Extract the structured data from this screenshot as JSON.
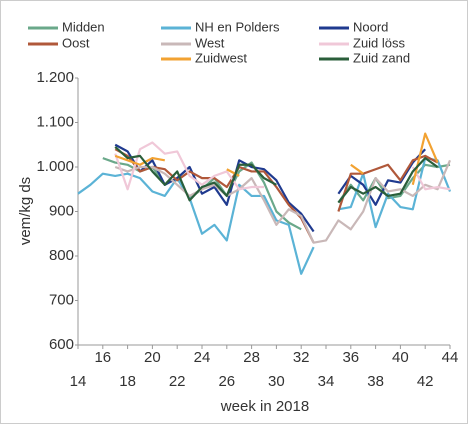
{
  "chart_data": {
    "type": "line",
    "y_label": "vem/kg ds",
    "x_label": "week in 2018",
    "x": [
      14,
      15,
      16,
      17,
      18,
      19,
      20,
      21,
      22,
      23,
      24,
      25,
      26,
      27,
      28,
      29,
      30,
      31,
      32,
      33,
      34,
      35,
      36,
      37,
      38,
      39,
      40,
      41,
      42,
      43,
      44
    ],
    "xlim": [
      14,
      44
    ],
    "xticks": [
      14,
      16,
      18,
      20,
      22,
      24,
      26,
      28,
      30,
      32,
      34,
      36,
      38,
      40,
      42,
      44
    ],
    "ylim": [
      600,
      1200
    ],
    "yticks": [
      600,
      700,
      800,
      900,
      {
        "value": 1000,
        "label": "1.000"
      },
      {
        "value": 1100,
        "label": "1.100"
      },
      {
        "value": 1200,
        "label": "1.200"
      }
    ],
    "series": [
      {
        "name": "Midden",
        "color": "#6aa88a",
        "values": [
          null,
          null,
          1020,
          1010,
          1005,
          990,
          1000,
          960,
          975,
          930,
          950,
          975,
          935,
          990,
          1010,
          965,
          900,
          875,
          860,
          null,
          null,
          920,
          960,
          925,
          975,
          930,
          935,
          975,
          1005,
          1000,
          1005
        ]
      },
      {
        "name": "NH en Polders",
        "color": "#5bb3d6",
        "values": [
          940,
          960,
          985,
          980,
          985,
          975,
          945,
          935,
          975,
          930,
          850,
          870,
          835,
          960,
          935,
          935,
          880,
          870,
          760,
          820,
          null,
          905,
          910,
          985,
          865,
          940,
          910,
          905,
          1020,
          1015,
          945
        ]
      },
      {
        "name": "Noord",
        "color": "#1f3a8f",
        "values": [
          null,
          null,
          null,
          1050,
          1035,
          990,
          1015,
          960,
          975,
          1000,
          940,
          955,
          915,
          1015,
          1000,
          995,
          970,
          920,
          895,
          855,
          null,
          940,
          980,
          960,
          915,
          970,
          965,
          1010,
          1040,
          null,
          null
        ]
      },
      {
        "name": "Oost",
        "color": "#b0583a",
        "values": [
          null,
          null,
          null,
          1040,
          1025,
          990,
          1000,
          995,
          970,
          990,
          975,
          975,
          955,
          1000,
          990,
          990,
          955,
          915,
          885,
          830,
          null,
          900,
          985,
          985,
          995,
          1005,
          970,
          1015,
          1025,
          1010,
          null
        ]
      },
      {
        "name": "West",
        "color": "#c9b8b8",
        "values": [
          null,
          null,
          null,
          1000,
          990,
          1000,
          1000,
          985,
          960,
          935,
          950,
          960,
          935,
          950,
          975,
          925,
          870,
          905,
          890,
          830,
          835,
          880,
          860,
          900,
          975,
          945,
          950,
          935,
          960,
          950,
          1015
        ]
      },
      {
        "name": "Zuid löss",
        "color": "#f0c8d8",
        "values": [
          null,
          null,
          null,
          1030,
          950,
          1040,
          1055,
          1030,
          1035,
          980,
          960,
          980,
          990,
          950,
          955,
          955,
          null,
          null,
          null,
          null,
          null,
          null,
          null,
          null,
          null,
          null,
          null,
          1000,
          950,
          955,
          950
        ]
      },
      {
        "name": "Zuidwest",
        "color": "#f2a232",
        "values": [
          null,
          null,
          null,
          1025,
          1015,
          1005,
          1020,
          1015,
          null,
          null,
          null,
          null,
          995,
          980,
          null,
          null,
          null,
          null,
          null,
          null,
          null,
          null,
          1005,
          985,
          null,
          null,
          null,
          960,
          1075,
          1010,
          null
        ]
      },
      {
        "name": "Zuid zand",
        "color": "#2a5e3a",
        "values": [
          null,
          null,
          null,
          1045,
          1020,
          1025,
          990,
          960,
          990,
          925,
          955,
          965,
          935,
          1005,
          1005,
          975,
          960,
          null,
          null,
          null,
          null,
          920,
          955,
          940,
          955,
          935,
          940,
          990,
          1020,
          1000,
          null
        ]
      }
    ]
  }
}
